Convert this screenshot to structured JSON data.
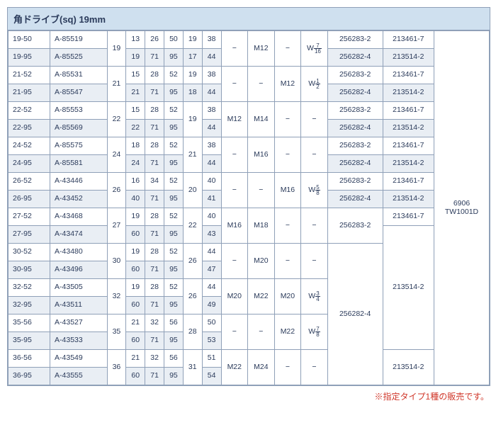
{
  "header": "角ドライブ(sq) 19mm",
  "footer_note": "※指定タイプ1種の販売です。",
  "machine_col": [
    "6906",
    "TW1001D"
  ],
  "rows": [
    {
      "m": "19-50",
      "p": "A-85519",
      "c1": "19",
      "c2": "13",
      "c3": "26",
      "c4": "50",
      "c5": "19",
      "c6": "38",
      "m1": "−",
      "m2": "M12",
      "m3": "−",
      "w": "W 7/16",
      "p1": "256283-2",
      "p2": "213461-7"
    },
    {
      "m": "19-95",
      "p": "A-85525",
      "c1": "",
      "c2": "19",
      "c3": "71",
      "c4": "95",
      "c5": "17",
      "c6": "44",
      "m1": "",
      "m2": "",
      "m3": "",
      "w": "",
      "p1": "256282-4",
      "p2": "213514-2",
      "alt": true
    },
    {
      "m": "21-52",
      "p": "A-85531",
      "c1": "21",
      "c2": "15",
      "c3": "28",
      "c4": "52",
      "c5": "19",
      "c6": "38",
      "m1": "−",
      "m2": "−",
      "m3": "M12",
      "w": "W 1/2",
      "p1": "256283-2",
      "p2": "213461-7"
    },
    {
      "m": "21-95",
      "p": "A-85547",
      "c1": "",
      "c2": "21",
      "c3": "71",
      "c4": "95",
      "c5": "18",
      "c6": "44",
      "m1": "",
      "m2": "",
      "m3": "",
      "w": "",
      "p1": "256282-4",
      "p2": "213514-2",
      "alt": true
    },
    {
      "m": "22-52",
      "p": "A-85553",
      "c1": "22",
      "c2": "15",
      "c3": "28",
      "c4": "52",
      "c5": "19",
      "c6": "38",
      "m1": "M12",
      "m2": "M14",
      "m3": "−",
      "w": "−",
      "p1": "256283-2",
      "p2": "213461-7"
    },
    {
      "m": "22-95",
      "p": "A-85569",
      "c1": "",
      "c2": "22",
      "c3": "71",
      "c4": "95",
      "c5": "",
      "c6": "44",
      "m1": "",
      "m2": "",
      "m3": "",
      "w": "",
      "p1": "256282-4",
      "p2": "213514-2",
      "alt": true
    },
    {
      "m": "24-52",
      "p": "A-85575",
      "c1": "24",
      "c2": "18",
      "c3": "28",
      "c4": "52",
      "c5": "21",
      "c6": "38",
      "m1": "−",
      "m2": "M16",
      "m3": "−",
      "w": "−",
      "p1": "256283-2",
      "p2": "213461-7"
    },
    {
      "m": "24-95",
      "p": "A-85581",
      "c1": "",
      "c2": "24",
      "c3": "71",
      "c4": "95",
      "c5": "",
      "c6": "44",
      "m1": "",
      "m2": "",
      "m3": "",
      "w": "",
      "p1": "256282-4",
      "p2": "213514-2",
      "alt": true
    },
    {
      "m": "26-52",
      "p": "A-43446",
      "c1": "26",
      "c2": "16",
      "c3": "34",
      "c4": "52",
      "c5": "20",
      "c6": "40",
      "m1": "−",
      "m2": "−",
      "m3": "M16",
      "w": "W 5/8",
      "p1": "256283-2",
      "p2": "213461-7"
    },
    {
      "m": "26-95",
      "p": "A-43452",
      "c1": "",
      "c2": "40",
      "c3": "71",
      "c4": "95",
      "c5": "",
      "c6": "41",
      "m1": "",
      "m2": "",
      "m3": "",
      "w": "",
      "p1": "256282-4",
      "p2": "213514-2",
      "alt": true
    },
    {
      "m": "27-52",
      "p": "A-43468",
      "c1": "27",
      "c2": "19",
      "c3": "28",
      "c4": "52",
      "c5": "22",
      "c6": "40",
      "m1": "M16",
      "m2": "M18",
      "m3": "−",
      "w": "−",
      "p1": "256283-2",
      "p2": "213461-7",
      "p1span": 2
    },
    {
      "m": "27-95",
      "p": "A-43474",
      "c1": "",
      "c2": "60",
      "c3": "71",
      "c4": "95",
      "c5": "",
      "c6": "43",
      "m1": "",
      "m2": "",
      "m3": "",
      "w": "",
      "p1": "",
      "p2": "213514-2",
      "alt": true,
      "p2span": 7
    },
    {
      "m": "30-52",
      "p": "A-43480",
      "c1": "30",
      "c2": "19",
      "c3": "28",
      "c4": "52",
      "c5": "26",
      "c6": "44",
      "m1": "−",
      "m2": "M20",
      "m3": "−",
      "w": "−",
      "p1": "256282-4",
      "p2": "",
      "p1span": 8
    },
    {
      "m": "30-95",
      "p": "A-43496",
      "c1": "",
      "c2": "60",
      "c3": "71",
      "c4": "95",
      "c5": "",
      "c6": "47",
      "m1": "",
      "m2": "",
      "m3": "",
      "w": "",
      "p1": "",
      "p2": "",
      "alt": true
    },
    {
      "m": "32-52",
      "p": "A-43505",
      "c1": "32",
      "c2": "19",
      "c3": "28",
      "c4": "52",
      "c5": "26",
      "c6": "44",
      "m1": "M20",
      "m2": "M22",
      "m3": "M20",
      "w": "W 3/4",
      "p1": "",
      "p2": ""
    },
    {
      "m": "32-95",
      "p": "A-43511",
      "c1": "",
      "c2": "60",
      "c3": "71",
      "c4": "95",
      "c5": "",
      "c6": "49",
      "m1": "",
      "m2": "",
      "m3": "",
      "w": "",
      "p1": "",
      "p2": "",
      "alt": true
    },
    {
      "m": "35-56",
      "p": "A-43527",
      "c1": "35",
      "c2": "21",
      "c3": "32",
      "c4": "56",
      "c5": "28",
      "c6": "50",
      "m1": "−",
      "m2": "−",
      "m3": "M22",
      "w": "W 7/8",
      "p1": "",
      "p2": ""
    },
    {
      "m": "35-95",
      "p": "A-43533",
      "c1": "",
      "c2": "60",
      "c3": "71",
      "c4": "95",
      "c5": "",
      "c6": "53",
      "m1": "",
      "m2": "",
      "m3": "",
      "w": "",
      "p1": "",
      "p2": "",
      "alt": true
    },
    {
      "m": "36-56",
      "p": "A-43549",
      "c1": "36",
      "c2": "21",
      "c3": "32",
      "c4": "56",
      "c5": "31",
      "c6": "51",
      "m1": "M22",
      "m2": "M24",
      "m3": "−",
      "w": "−",
      "p1": "",
      "p2": "213514-2",
      "p2span": 2
    },
    {
      "m": "36-95",
      "p": "A-43555",
      "c1": "",
      "c2": "60",
      "c3": "71",
      "c4": "95",
      "c5": "",
      "c6": "54",
      "m1": "",
      "m2": "",
      "m3": "",
      "w": "",
      "p1": "",
      "p2": "",
      "alt": true
    }
  ]
}
